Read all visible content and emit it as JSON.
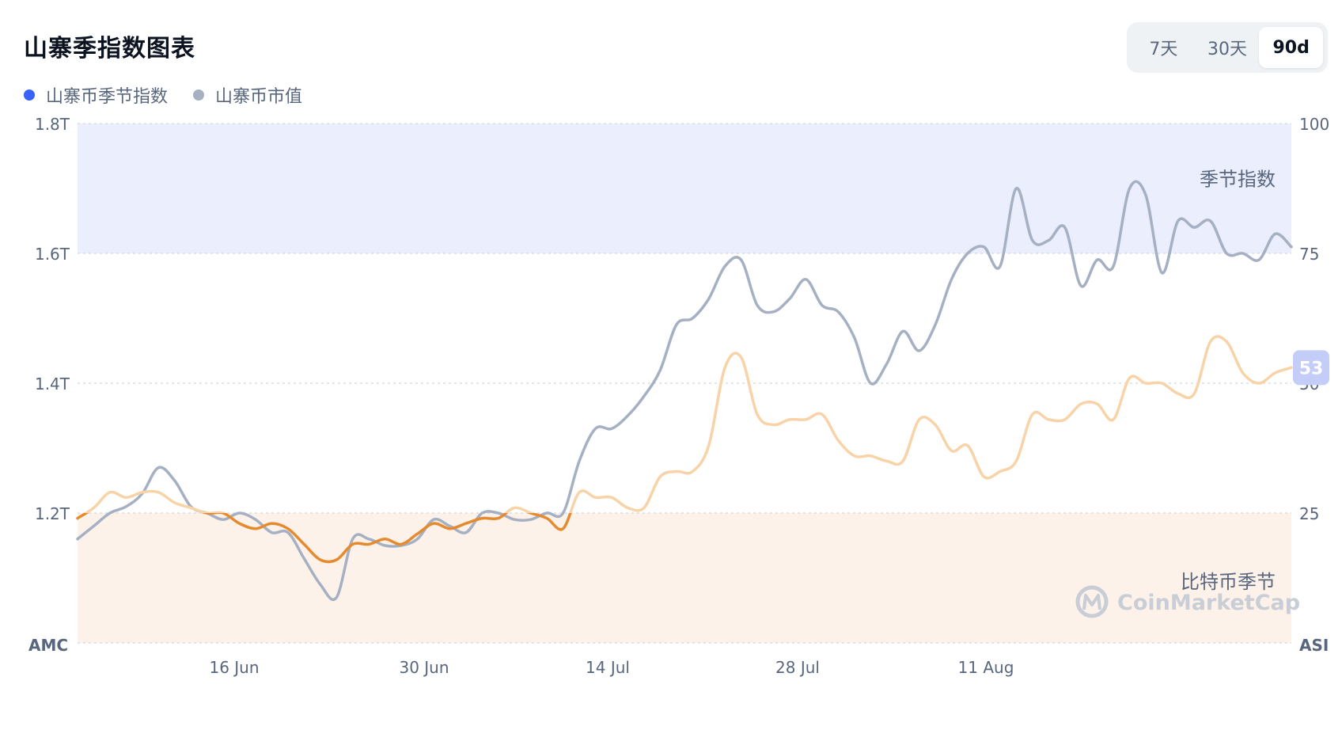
{
  "header": {
    "title": "山寨季指数图表",
    "range_buttons": [
      {
        "label": "7天",
        "active": false
      },
      {
        "label": "30天",
        "active": false
      },
      {
        "label": "90d",
        "active": true
      }
    ]
  },
  "legend": [
    {
      "label": "山寨币季节指数",
      "color": "#3861fb"
    },
    {
      "label": "山寨币市值",
      "color": "#a6b0c3"
    }
  ],
  "chart_data": {
    "type": "line",
    "x_ticks": [
      "16 Jun",
      "30 Jun",
      "14 Jul",
      "28 Jul",
      "11 Aug"
    ],
    "left_axis": {
      "label": "AMC",
      "ticks": [
        "1.8T",
        "1.6T",
        "1.4T",
        "1.2T"
      ],
      "range": [
        1.0,
        1.8
      ],
      "unit": "T"
    },
    "right_axis": {
      "label": "ASI",
      "ticks": [
        "100",
        "75",
        "50",
        "25"
      ],
      "range": [
        0,
        100
      ]
    },
    "zones": {
      "altcoin_season": {
        "label": "季节指数",
        "from": 75,
        "to": 100
      },
      "bitcoin_season": {
        "label": "比特币季节",
        "from": 0,
        "to": 25
      }
    },
    "watermark": "CoinMarketCap",
    "current_index_badge": "53",
    "colors": {
      "market_cap": "#a6b0c3",
      "index_mid": "#f8d3a8",
      "index_bitcoin": "#e58a2e",
      "index_altcoin": "#c3cdf8",
      "altcoin_zone": "#eaeefd",
      "bitcoin_zone": "#fdf2e9",
      "badge": "#c3cdf8"
    },
    "series": [
      {
        "name": "山寨币市值",
        "axis": "left",
        "values": [
          1.16,
          1.18,
          1.2,
          1.21,
          1.23,
          1.27,
          1.25,
          1.21,
          1.2,
          1.19,
          1.2,
          1.19,
          1.17,
          1.17,
          1.13,
          1.09,
          1.07,
          1.16,
          1.16,
          1.15,
          1.15,
          1.16,
          1.19,
          1.18,
          1.17,
          1.2,
          1.2,
          1.19,
          1.19,
          1.2,
          1.2,
          1.28,
          1.33,
          1.33,
          1.35,
          1.38,
          1.42,
          1.49,
          1.5,
          1.53,
          1.58,
          1.59,
          1.52,
          1.51,
          1.53,
          1.56,
          1.52,
          1.51,
          1.47,
          1.4,
          1.43,
          1.48,
          1.45,
          1.49,
          1.56,
          1.6,
          1.61,
          1.58,
          1.7,
          1.62,
          1.62,
          1.64,
          1.55,
          1.59,
          1.58,
          1.7,
          1.69,
          1.57,
          1.65,
          1.64,
          1.65,
          1.6,
          1.6,
          1.59,
          1.63,
          1.61
        ]
      },
      {
        "name": "山寨币季节指数",
        "axis": "right",
        "values": [
          24,
          26,
          29,
          28,
          29,
          29,
          27,
          26,
          25,
          25,
          23,
          22,
          23,
          22,
          19,
          16,
          16,
          19,
          19,
          20,
          19,
          21,
          23,
          22,
          23,
          24,
          24,
          26,
          25,
          24,
          22,
          29,
          28,
          28,
          26,
          26,
          32,
          33,
          33,
          38,
          53,
          55,
          44,
          42,
          43,
          43,
          44,
          39,
          36,
          36,
          35,
          35,
          43,
          42,
          37,
          38,
          32,
          33,
          35,
          44,
          43,
          43,
          46,
          46,
          43,
          51,
          50,
          50,
          48,
          48,
          58,
          58,
          52,
          50,
          52,
          53
        ]
      }
    ]
  }
}
